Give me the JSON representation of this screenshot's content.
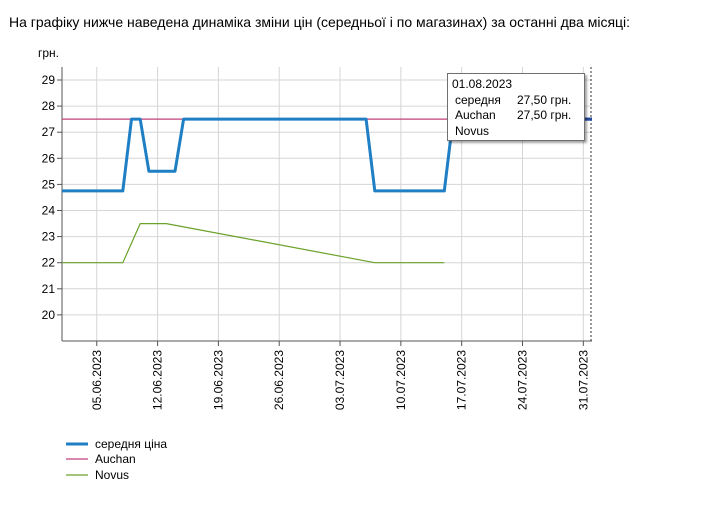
{
  "heading": "На графіку нижче наведена динаміка зміни цін (середньої і по магазинах) за останні два місяці:",
  "chart_data": {
    "type": "line",
    "ylabel": "грн.",
    "ylim": [
      19,
      29
    ],
    "yticks": [
      20,
      21,
      22,
      23,
      24,
      25,
      26,
      27,
      28,
      29
    ],
    "x_tick_labels": [
      "05.06.2023",
      "12.06.2023",
      "19.06.2023",
      "26.06.2023",
      "03.07.2023",
      "10.07.2023",
      "17.07.2023",
      "24.07.2023",
      "31.07.2023"
    ],
    "x_tick_dates": [
      "2023-06-05",
      "2023-06-12",
      "2023-06-19",
      "2023-06-26",
      "2023-07-03",
      "2023-07-10",
      "2023-07-17",
      "2023-07-24",
      "2023-07-31"
    ],
    "x_range": [
      "2023-06-01",
      "2023-08-01"
    ],
    "grid": true,
    "legend_position": "bottom-left",
    "series": [
      {
        "name": "середня ціна",
        "color": "#1f7fc4",
        "x": [
          "2023-06-01",
          "2023-06-08",
          "2023-06-09",
          "2023-06-10",
          "2023-06-11",
          "2023-06-14",
          "2023-06-15",
          "2023-07-06",
          "2023-07-07",
          "2023-07-15",
          "2023-07-16",
          "2023-07-17",
          "2023-08-01"
        ],
        "values": [
          24.75,
          24.75,
          27.5,
          27.5,
          25.5,
          25.5,
          27.5,
          27.5,
          24.75,
          24.75,
          27.5,
          27.5,
          27.5
        ]
      },
      {
        "name": "Auchan",
        "color": "#c0407a",
        "x": [
          "2023-06-01",
          "2023-08-01"
        ],
        "values": [
          27.5,
          27.5
        ]
      },
      {
        "name": "Novus",
        "color": "#6aa22a",
        "x": [
          "2023-06-01",
          "2023-06-08",
          "2023-06-10",
          "2023-06-13",
          "2023-07-07",
          "2023-07-15"
        ],
        "values": [
          22.0,
          22.0,
          23.5,
          23.5,
          22.0,
          22.0
        ]
      }
    ],
    "tooltip": {
      "date": "01.08.2023",
      "rows": [
        {
          "name": "середня",
          "value": "27,50 грн."
        },
        {
          "name": "Auchan",
          "value": "27,50 грн."
        },
        {
          "name": "Novus",
          "value": ""
        }
      ]
    }
  }
}
